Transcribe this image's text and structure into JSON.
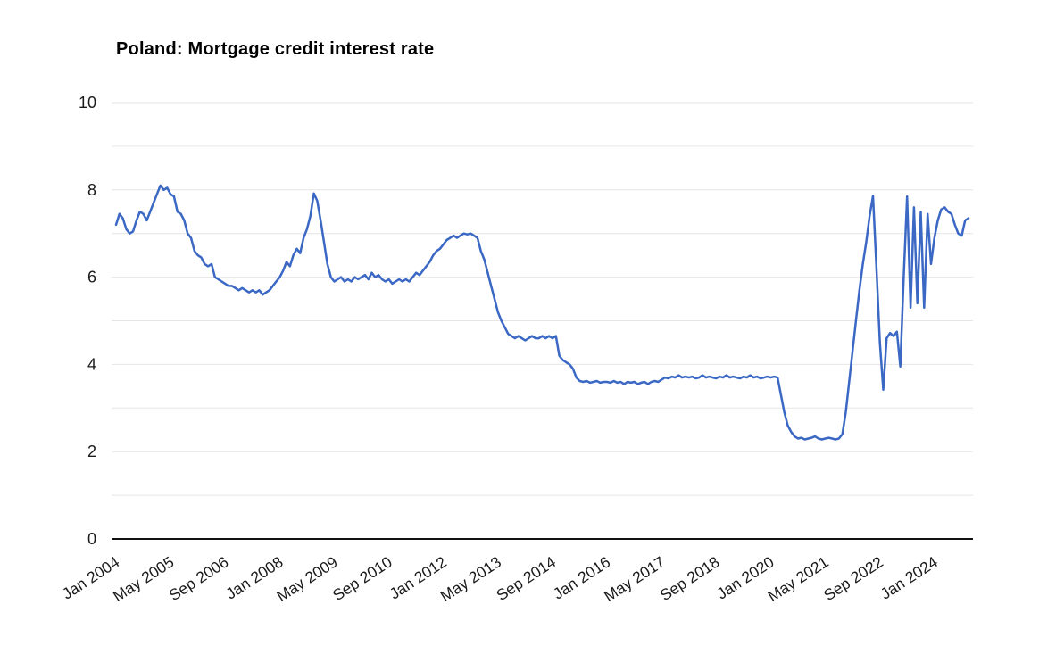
{
  "chart": {
    "title": "Poland: Mortgage credit interest rate"
  },
  "style": {
    "background": "#ffffff",
    "grid_color": "#e6e6e6",
    "axis_color": "#111111",
    "text_color": "#1a1a1a",
    "title_color": "#000000"
  },
  "chart_data": {
    "type": "line",
    "title": "Poland: Mortgage credit interest rate",
    "xlabel": "",
    "ylabel": "",
    "legend": "none",
    "grid": "horizontal",
    "grid_interval": 1,
    "ylim": [
      0,
      10
    ],
    "y_ticks": [
      0,
      2,
      4,
      6,
      8,
      10
    ],
    "x_unit": "month",
    "x_start": "Jan 2004",
    "x_end": "Nov 2024",
    "x_tick_labels": [
      "Jan 2004",
      "May 2005",
      "Sep 2006",
      "Jan 2008",
      "May 2009",
      "Sep 2010",
      "Jan 2012",
      "May 2013",
      "Sep 2014",
      "Jan 2016",
      "May 2017",
      "Sep 2018",
      "Jan 2020",
      "May 2021",
      "Sep 2022",
      "Jan 2024"
    ],
    "x_tick_month_indices": [
      0,
      16,
      32,
      48,
      64,
      80,
      96,
      112,
      128,
      144,
      160,
      176,
      192,
      208,
      224,
      240
    ],
    "series": [
      {
        "name": "Mortgage credit interest rate (%)",
        "color": "#3b68c4",
        "values": [
          7.2,
          7.45,
          7.35,
          7.1,
          7.0,
          7.05,
          7.3,
          7.5,
          7.45,
          7.3,
          7.5,
          7.7,
          7.9,
          8.1,
          8.0,
          8.05,
          7.9,
          7.85,
          7.5,
          7.45,
          7.3,
          7.0,
          6.9,
          6.6,
          6.5,
          6.45,
          6.3,
          6.25,
          6.3,
          6.0,
          5.95,
          5.9,
          5.85,
          5.8,
          5.8,
          5.75,
          5.7,
          5.75,
          5.7,
          5.65,
          5.7,
          5.65,
          5.7,
          5.6,
          5.65,
          5.7,
          5.8,
          5.9,
          6.0,
          6.15,
          6.35,
          6.25,
          6.5,
          6.65,
          6.55,
          6.9,
          7.1,
          7.4,
          7.92,
          7.75,
          7.3,
          6.8,
          6.3,
          6.0,
          5.9,
          5.95,
          6.0,
          5.9,
          5.95,
          5.9,
          6.0,
          5.95,
          6.0,
          6.05,
          5.95,
          6.1,
          6.0,
          6.05,
          5.95,
          5.9,
          5.95,
          5.85,
          5.9,
          5.95,
          5.9,
          5.95,
          5.9,
          6.0,
          6.1,
          6.05,
          6.15,
          6.25,
          6.35,
          6.5,
          6.6,
          6.65,
          6.75,
          6.85,
          6.9,
          6.95,
          6.9,
          6.95,
          7.0,
          6.98,
          7.0,
          6.95,
          6.9,
          6.6,
          6.4,
          6.1,
          5.8,
          5.5,
          5.2,
          5.0,
          4.85,
          4.7,
          4.65,
          4.6,
          4.65,
          4.6,
          4.55,
          4.6,
          4.65,
          4.6,
          4.6,
          4.65,
          4.6,
          4.65,
          4.6,
          4.65,
          4.2,
          4.1,
          4.05,
          4.0,
          3.9,
          3.7,
          3.62,
          3.6,
          3.62,
          3.58,
          3.6,
          3.62,
          3.58,
          3.6,
          3.6,
          3.58,
          3.62,
          3.58,
          3.6,
          3.55,
          3.6,
          3.58,
          3.6,
          3.55,
          3.58,
          3.6,
          3.55,
          3.6,
          3.62,
          3.6,
          3.65,
          3.7,
          3.68,
          3.72,
          3.7,
          3.75,
          3.7,
          3.72,
          3.7,
          3.72,
          3.68,
          3.7,
          3.75,
          3.7,
          3.72,
          3.7,
          3.68,
          3.72,
          3.7,
          3.75,
          3.7,
          3.72,
          3.7,
          3.68,
          3.72,
          3.7,
          3.75,
          3.7,
          3.72,
          3.68,
          3.7,
          3.72,
          3.7,
          3.72,
          3.7,
          3.3,
          2.9,
          2.6,
          2.45,
          2.35,
          2.3,
          2.32,
          2.28,
          2.3,
          2.32,
          2.35,
          2.3,
          2.28,
          2.3,
          2.32,
          2.3,
          2.28,
          2.3,
          2.4,
          2.9,
          3.6,
          4.3,
          5.0,
          5.7,
          6.3,
          6.8,
          7.4,
          7.86,
          6.2,
          4.5,
          3.42,
          4.6,
          4.72,
          4.65,
          4.75,
          3.95,
          6.0,
          7.85,
          5.3,
          7.6,
          5.4,
          7.5,
          5.3,
          7.45,
          6.3,
          6.9,
          7.3,
          7.55,
          7.6,
          7.5,
          7.45,
          7.2,
          7.0,
          6.95,
          7.3,
          7.35
        ]
      }
    ]
  }
}
